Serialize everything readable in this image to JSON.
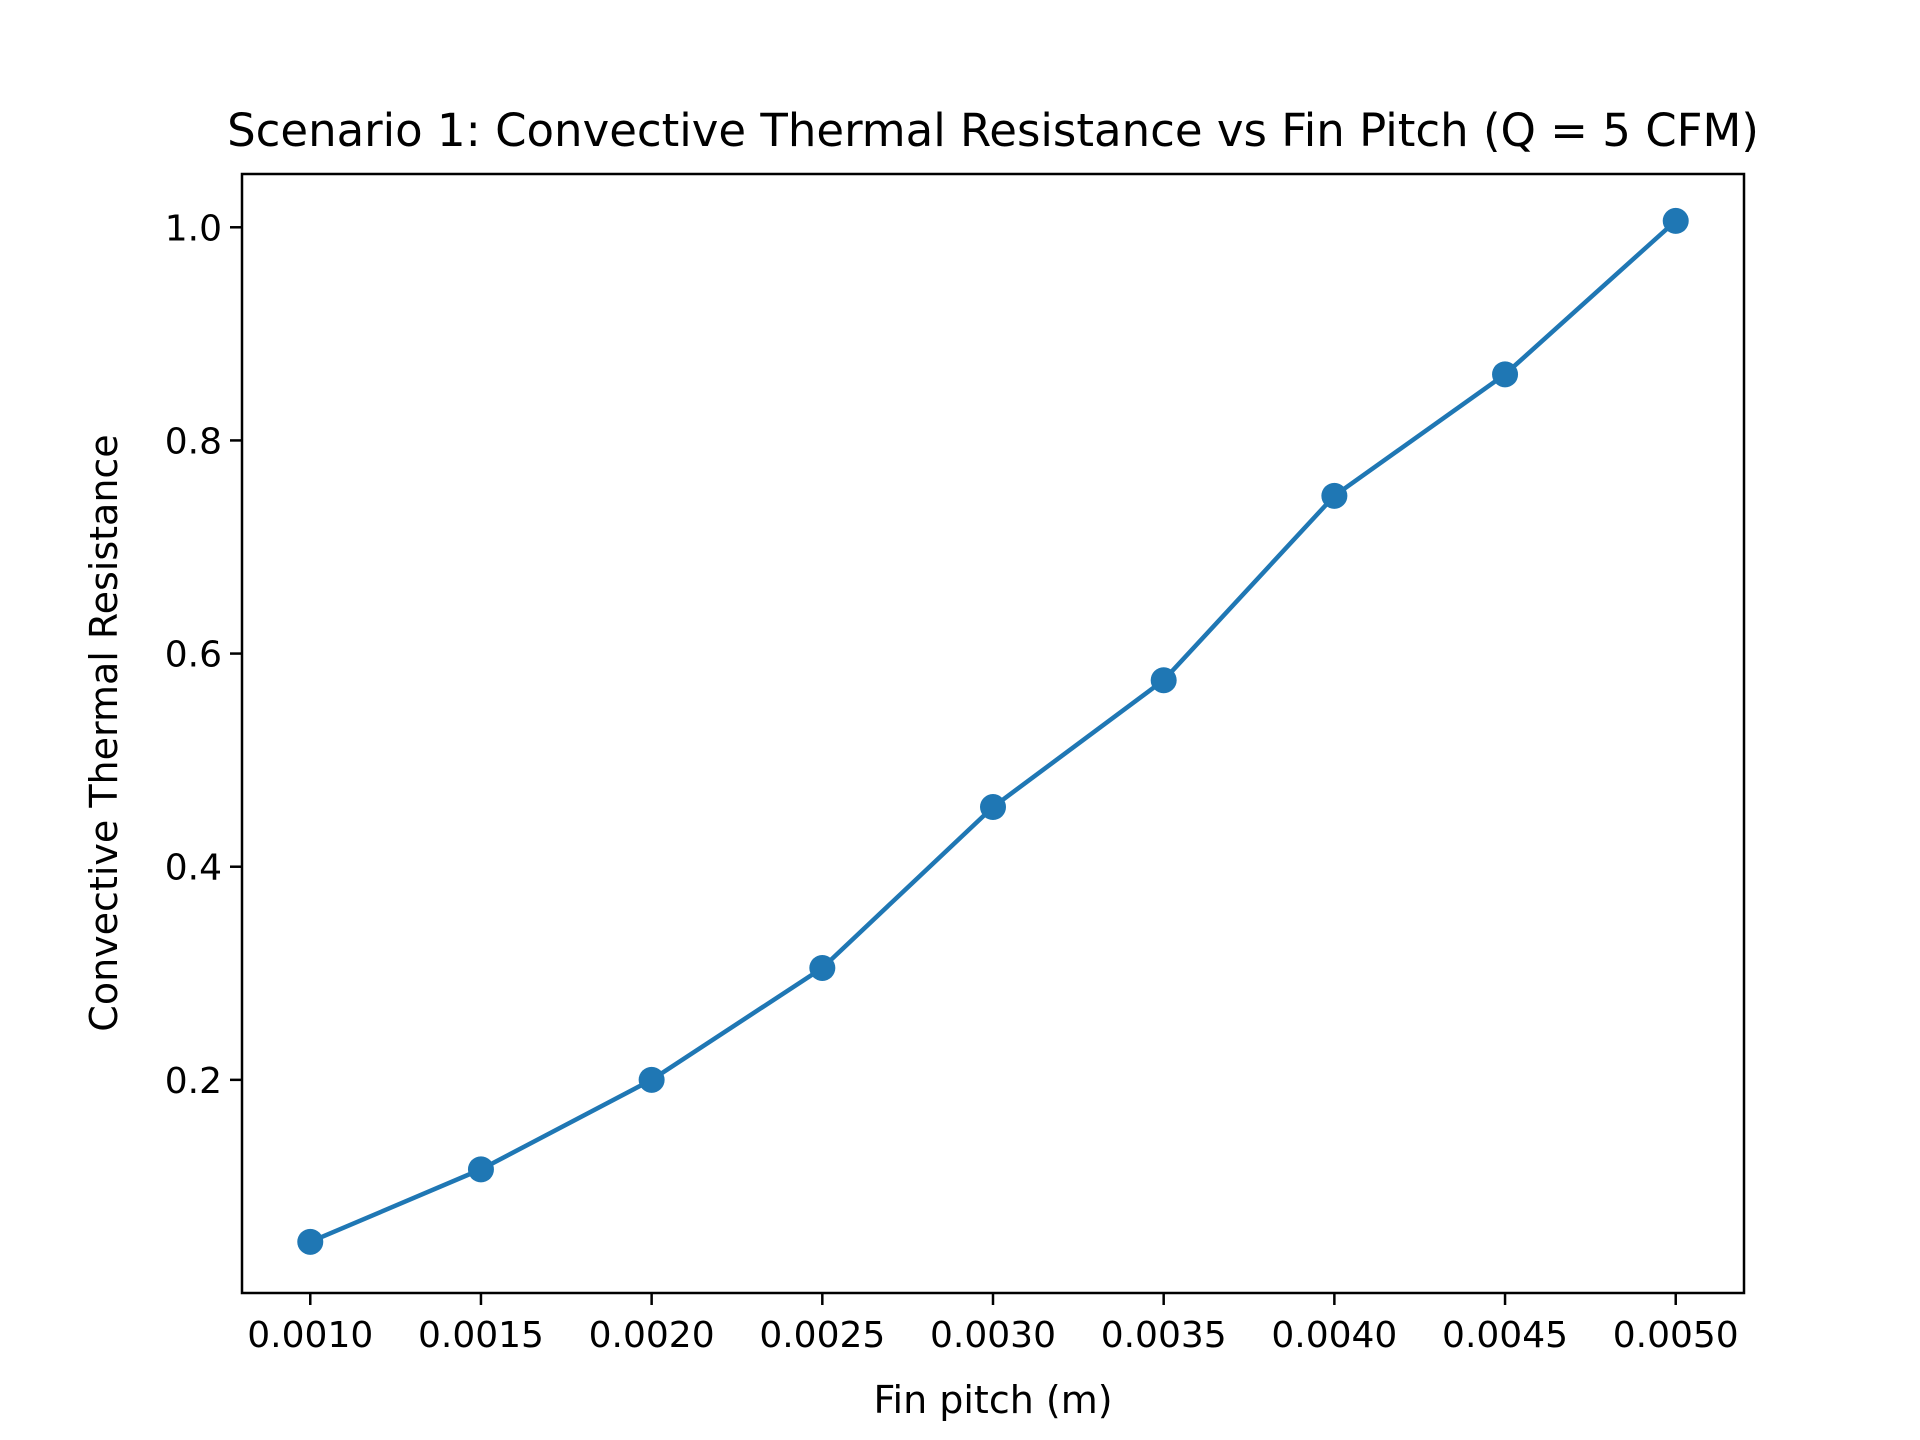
{
  "chart_data": {
    "type": "line",
    "title": "Scenario 1: Convective Thermal Resistance vs Fin Pitch (Q = 5 CFM)",
    "xlabel": "Fin pitch (m)",
    "ylabel": "Convective Thermal Resistance",
    "xlim": [
      0.0008,
      0.0052
    ],
    "ylim": [
      0.0,
      1.05
    ],
    "xticks": [
      "0.0010",
      "0.0015",
      "0.0020",
      "0.0025",
      "0.0030",
      "0.0035",
      "0.0040",
      "0.0045",
      "0.0050"
    ],
    "yticks": [
      "0.2",
      "0.4",
      "0.6",
      "0.8",
      "1.0"
    ],
    "grid": false,
    "legend": false,
    "series": [
      {
        "color": "#1f77b4",
        "marker": "circle",
        "x": [
          0.001,
          0.0015,
          0.002,
          0.0025,
          0.003,
          0.0035,
          0.004,
          0.0045,
          0.005
        ],
        "y": [
          0.048,
          0.116,
          0.2,
          0.305,
          0.456,
          0.575,
          0.748,
          0.862,
          1.006
        ]
      }
    ]
  }
}
